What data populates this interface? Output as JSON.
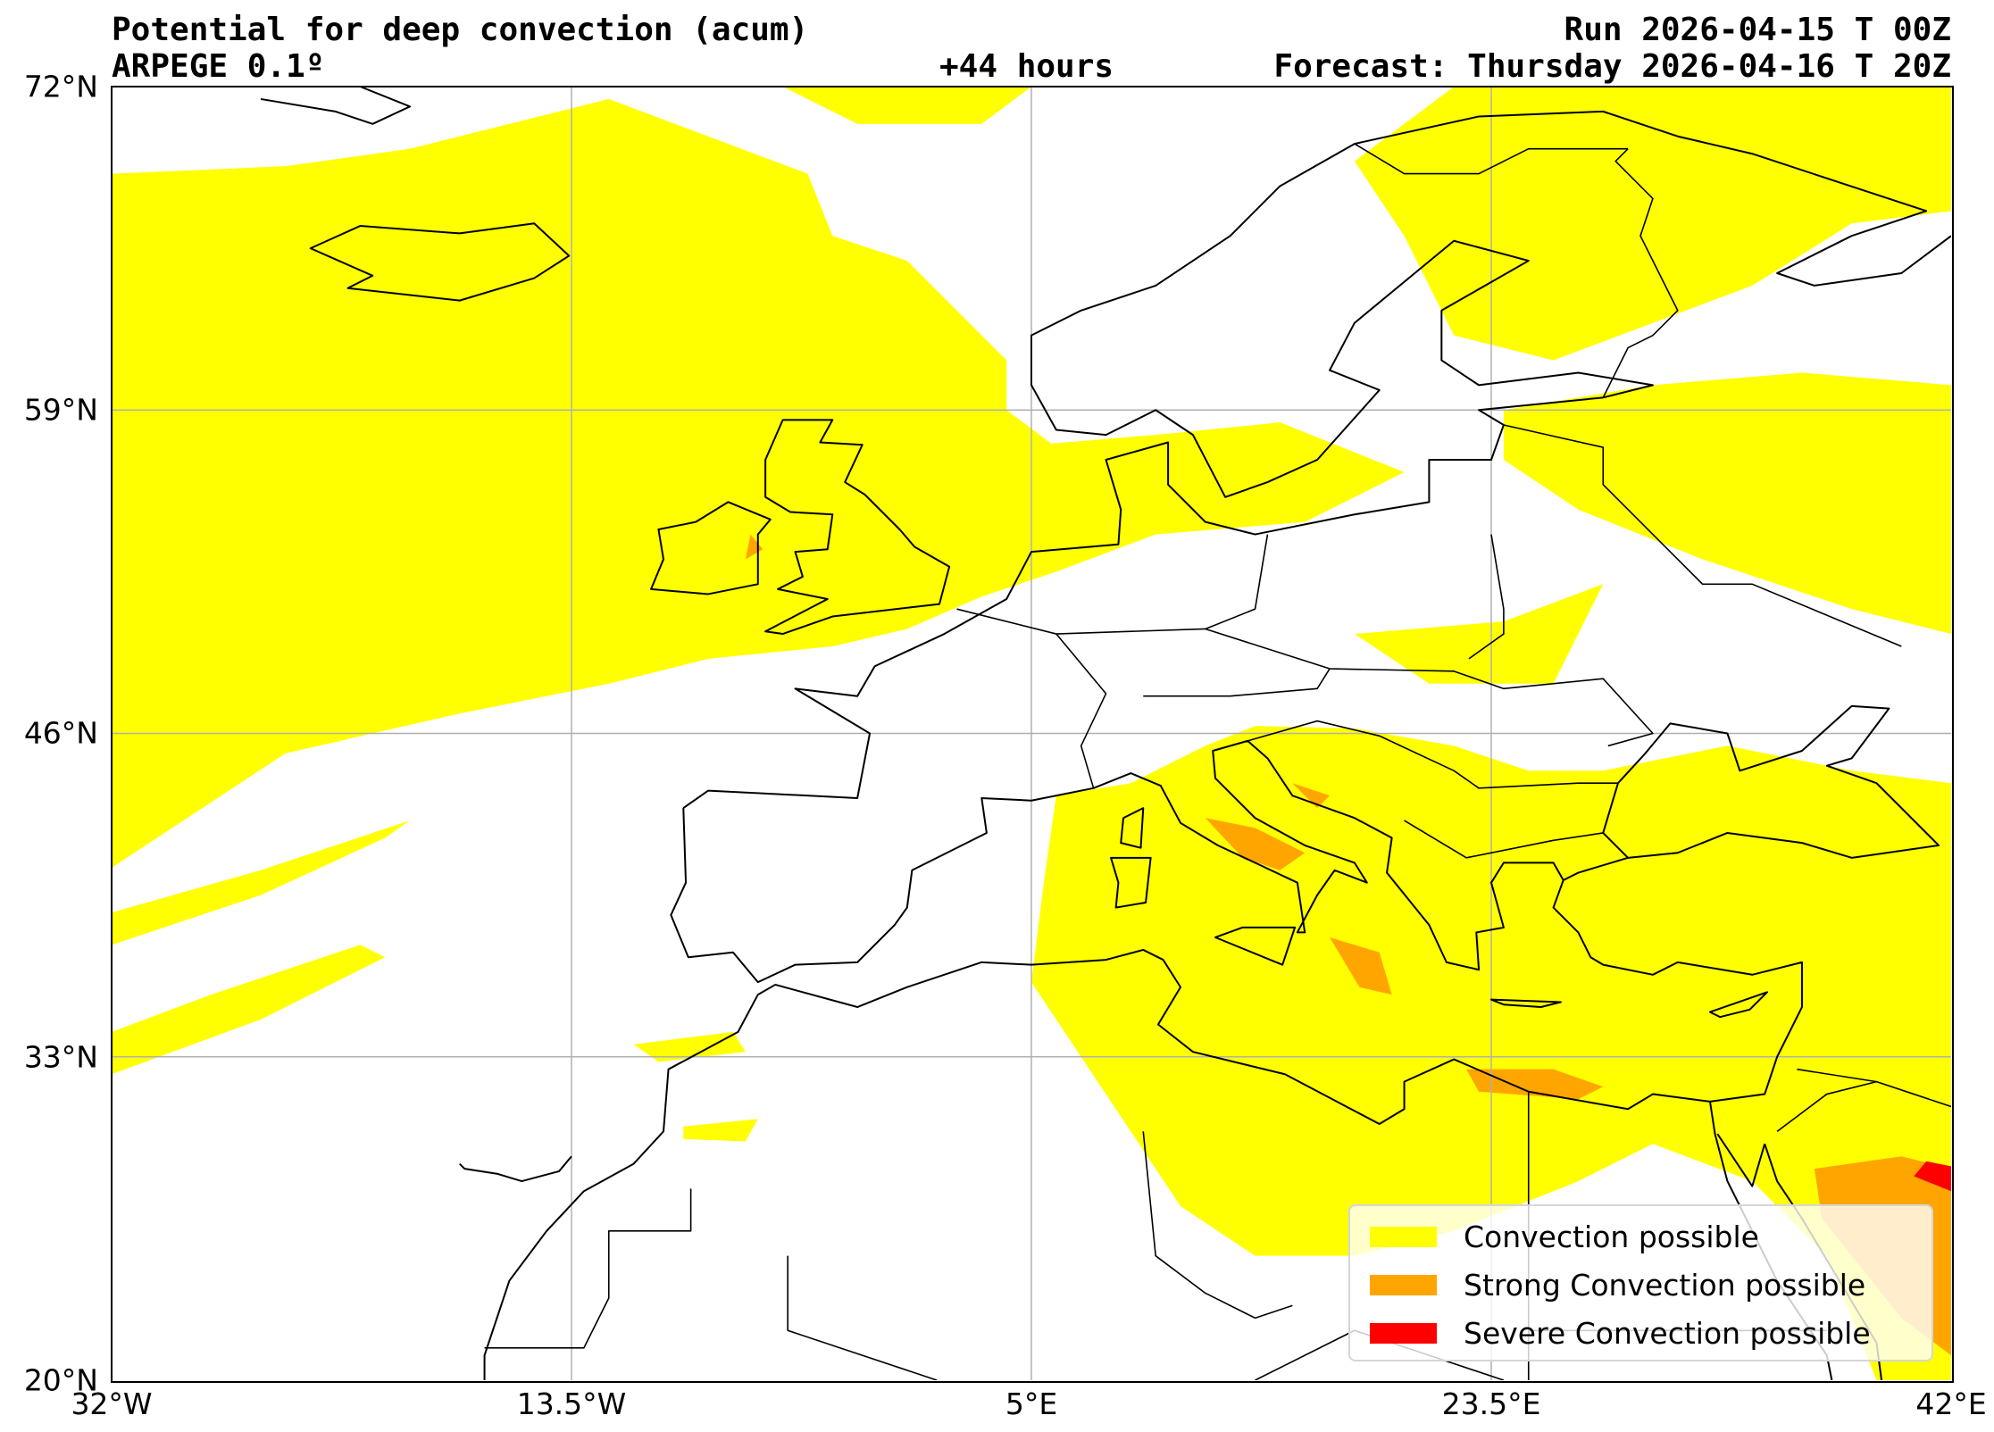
{
  "header": {
    "title": "Potential for deep convection (acum)",
    "run": "Run 2026-04-15 T 00Z",
    "model": "ARPEGE 0.1º",
    "lead_time": "+44 hours",
    "forecast": "Forecast: Thursday 2026-04-16 T 20Z"
  },
  "axes": {
    "lat_labels": [
      "72°N",
      "59°N",
      "46°N",
      "33°N",
      "20°N"
    ],
    "lon_labels": [
      "32°W",
      "13.5°W",
      "5°E",
      "23.5°E",
      "42°E"
    ],
    "lon_range": [
      -32,
      42
    ],
    "lat_range": [
      20,
      72
    ]
  },
  "legend": {
    "items": [
      {
        "label": "Convection possible",
        "color": "#ffff00"
      },
      {
        "label": "Strong Convection possible",
        "color": "#ffa500"
      },
      {
        "label": "Severe Convection possible",
        "color": "#ff0000"
      }
    ]
  },
  "colors": {
    "grid": "#b0b0b0",
    "coast": "#000000"
  }
}
